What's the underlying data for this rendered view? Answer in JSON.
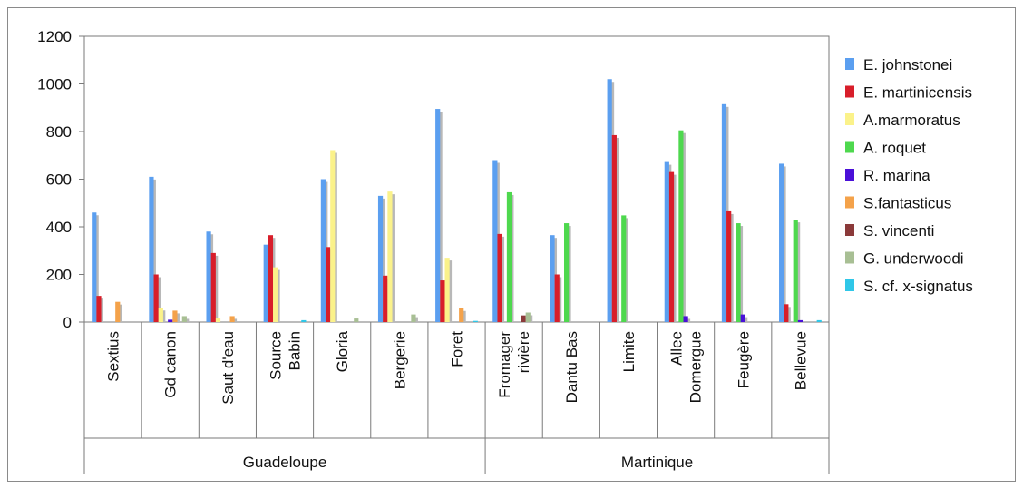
{
  "chart_data": {
    "type": "bar",
    "ylim": [
      0,
      1200
    ],
    "yticks": [
      0,
      200,
      400,
      600,
      800,
      1000,
      1200
    ],
    "grid": false,
    "legend_position": "right",
    "categories": [
      [
        "Sextius"
      ],
      [
        "Gd canon"
      ],
      [
        "Saut d'eau"
      ],
      [
        "Source",
        "Babin"
      ],
      [
        "Gloria"
      ],
      [
        "Bergerie"
      ],
      [
        "Foret"
      ],
      [
        "Fromager",
        "rivière"
      ],
      [
        "Dantu Bas"
      ],
      [
        "Limite"
      ],
      [
        "Allee",
        "Domergue"
      ],
      [
        "Feugère"
      ],
      [
        "Bellevue"
      ]
    ],
    "groups": [
      {
        "label": "Guadeloupe",
        "categories": 7
      },
      {
        "label": "Martinique",
        "categories": 6
      }
    ],
    "series": [
      {
        "name": "E. johnstonei",
        "color": "#5b9ff0",
        "values": [
          460,
          610,
          380,
          325,
          600,
          530,
          895,
          680,
          365,
          1020,
          672,
          915,
          665
        ]
      },
      {
        "name": "E. martinicensis",
        "color": "#d81e2a",
        "values": [
          110,
          200,
          290,
          365,
          315,
          195,
          175,
          370,
          200,
          785,
          630,
          465,
          75
        ]
      },
      {
        "name": "A.marmoratus",
        "color": "#fbf28a",
        "values": [
          0,
          60,
          15,
          230,
          722,
          548,
          270,
          0,
          0,
          0,
          0,
          0,
          0
        ]
      },
      {
        "name": "A. roquet",
        "color": "#4ed84e",
        "values": [
          0,
          0,
          0,
          0,
          0,
          0,
          0,
          545,
          415,
          448,
          805,
          415,
          430
        ]
      },
      {
        "name": "R. marina",
        "color": "#4a10d8",
        "values": [
          0,
          10,
          0,
          0,
          0,
          0,
          0,
          0,
          0,
          0,
          25,
          32,
          8
        ]
      },
      {
        "name": "S.fantasticus",
        "color": "#f4a24a",
        "values": [
          85,
          48,
          25,
          0,
          0,
          0,
          58,
          0,
          0,
          0,
          0,
          0,
          0
        ]
      },
      {
        "name": "S. vincenti",
        "color": "#8b3a3a",
        "values": [
          0,
          0,
          0,
          0,
          0,
          0,
          0,
          28,
          0,
          0,
          0,
          0,
          0
        ]
      },
      {
        "name": "G. underwoodi",
        "color": "#a8bf94",
        "values": [
          0,
          25,
          0,
          0,
          15,
          32,
          0,
          40,
          0,
          0,
          0,
          0,
          0
        ]
      },
      {
        "name": "S. cf. x-signatus",
        "color": "#2fc7e8",
        "values": [
          0,
          0,
          0,
          8,
          0,
          0,
          5,
          0,
          0,
          0,
          0,
          0,
          8
        ]
      }
    ]
  }
}
